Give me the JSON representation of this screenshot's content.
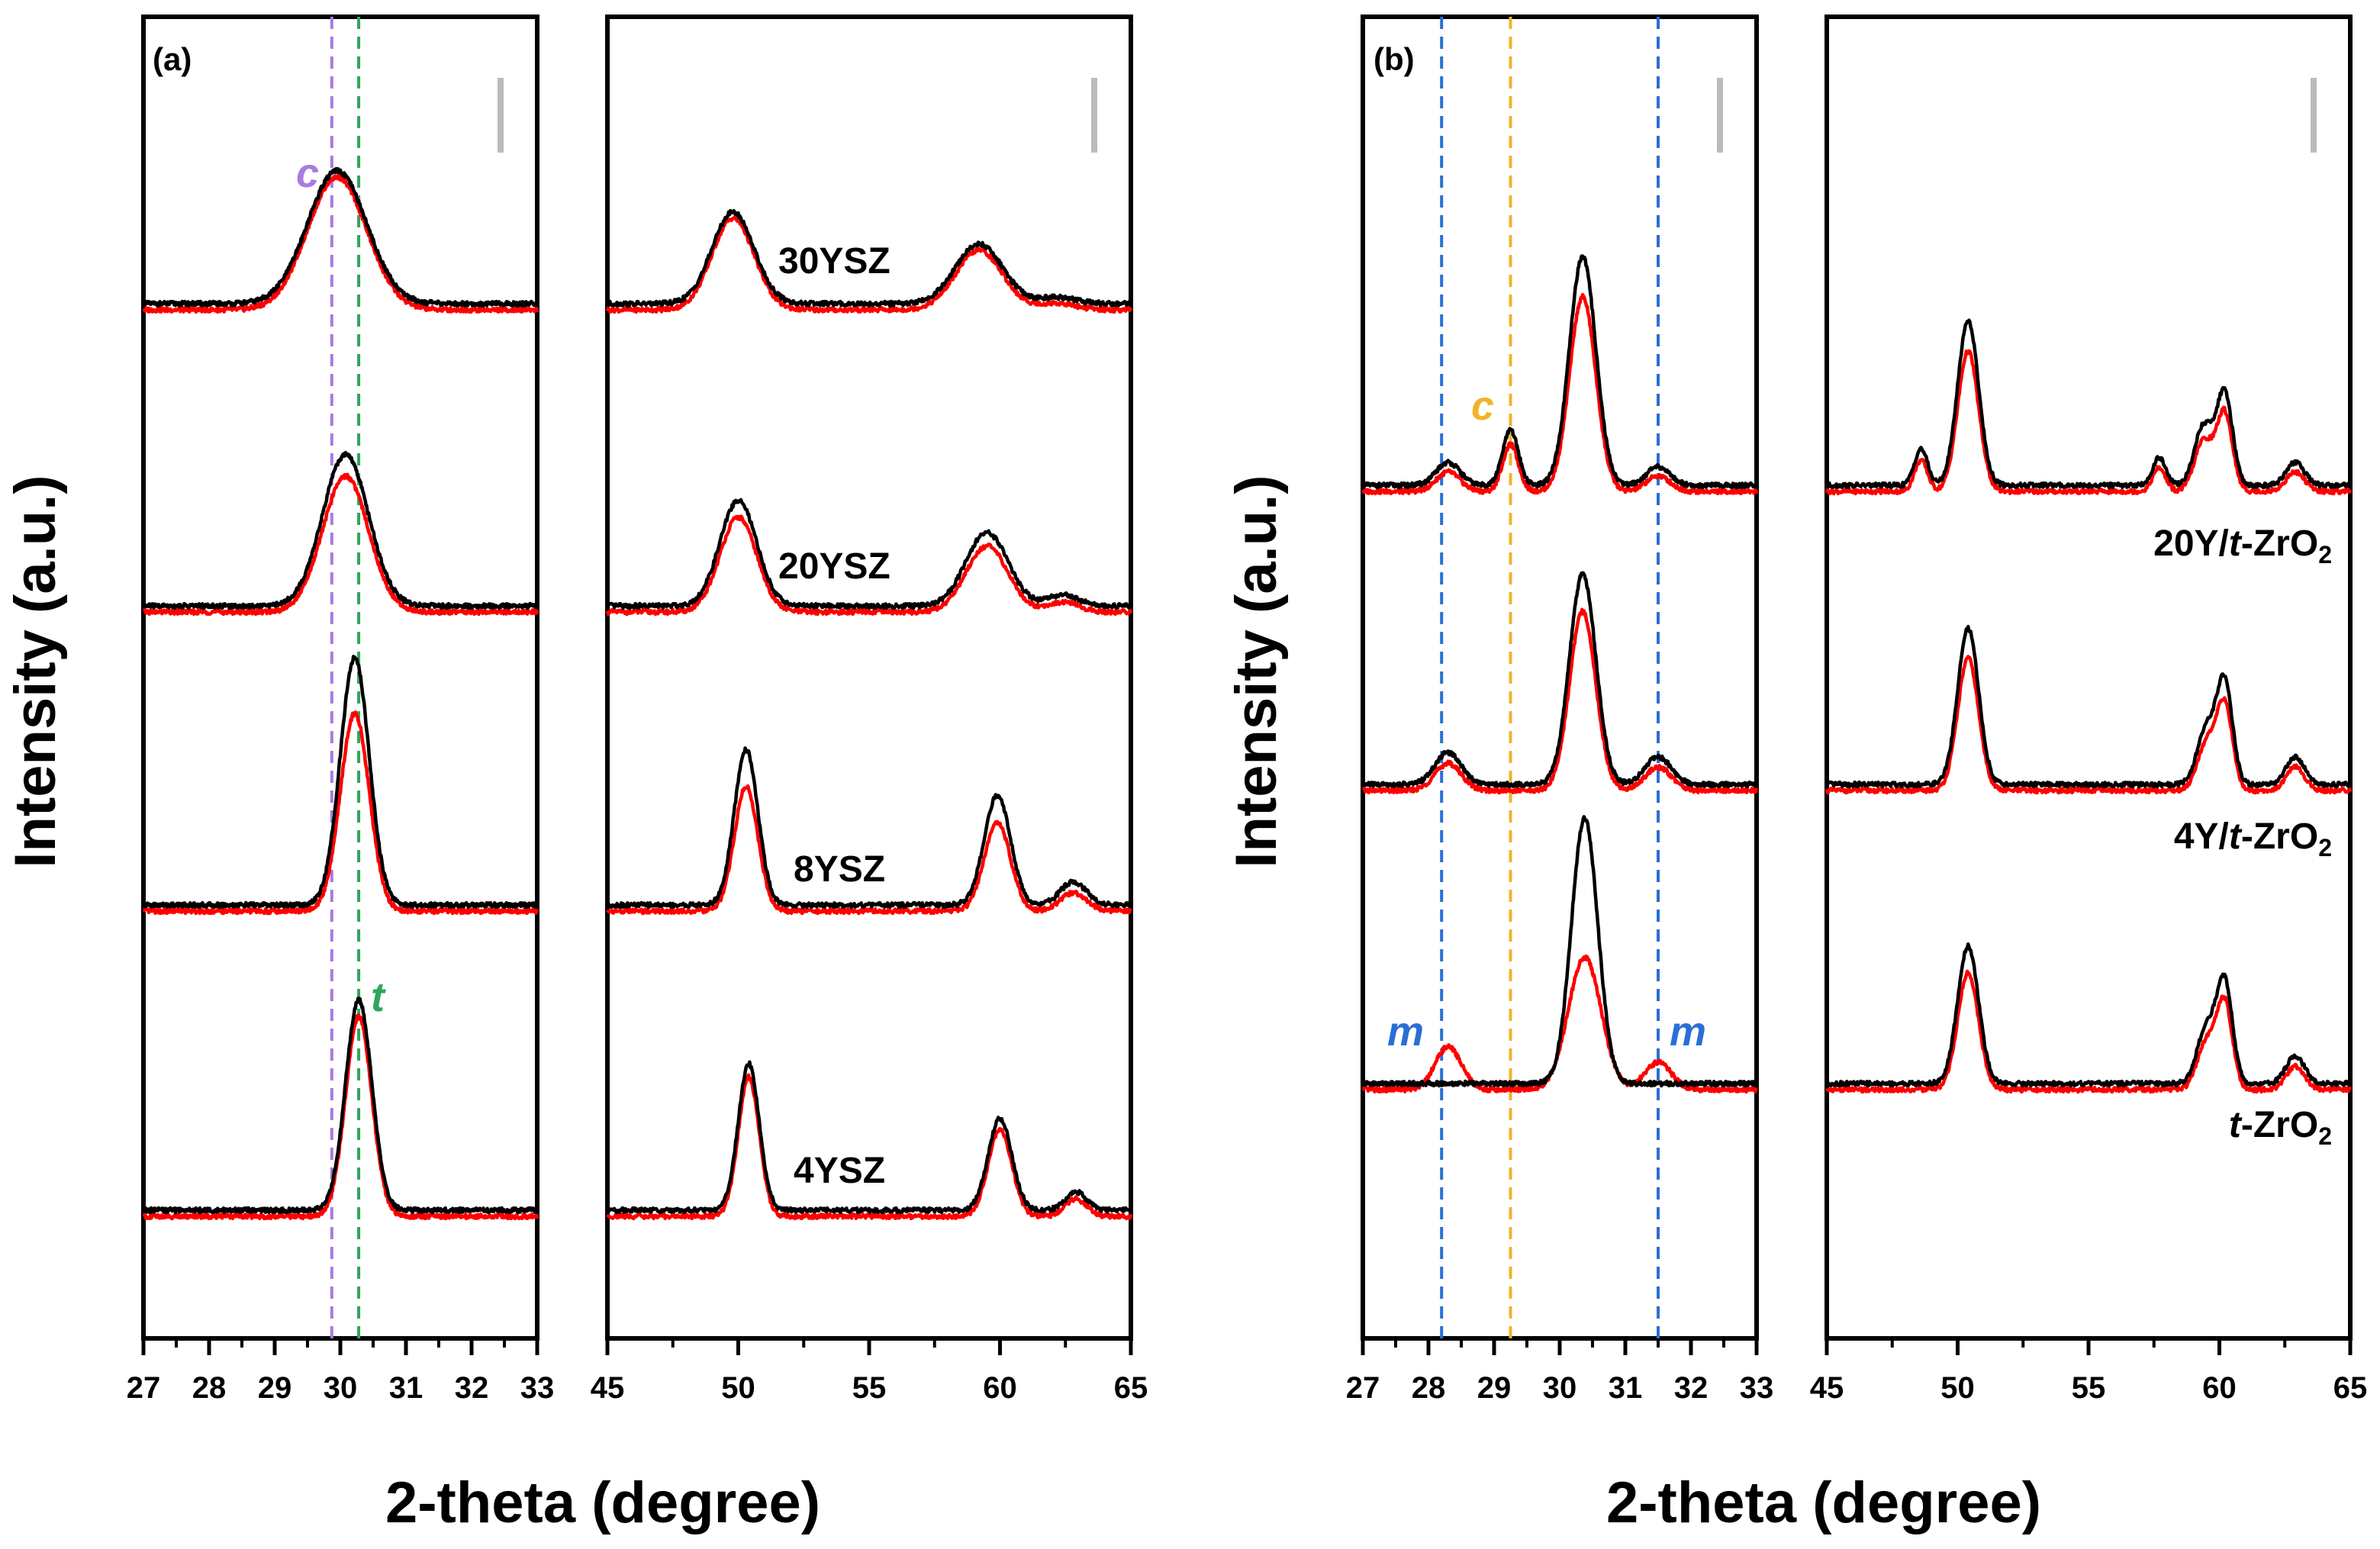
{
  "figure": {
    "ylabel": "Intensity (a.u.)",
    "xlabel": "2-theta (degree)"
  },
  "series_legend": {
    "black": "#000000",
    "red": "#ff0000"
  },
  "chart_data": [
    {
      "type": "line",
      "panel": "(a)",
      "xlabel": "2-theta (degree)",
      "ylabel": "Intensity (a.u.)",
      "subplots": [
        {
          "xlim": [
            27,
            33
          ],
          "xticks": [
            "27",
            "28",
            "29",
            "30",
            "31",
            "32",
            "33"
          ],
          "reference_lines": [
            {
              "x": 29.87,
              "phase": "c",
              "color": "#a87be0"
            },
            {
              "x": 30.28,
              "phase": "t",
              "color": "#2ea65a"
            }
          ],
          "scale_bar": true
        },
        {
          "xlim": [
            45,
            65
          ],
          "xticks": [
            "45",
            "50",
            "55",
            "60",
            "65"
          ],
          "scale_bar": true
        }
      ],
      "samples": [
        {
          "name": "30YSZ",
          "offset": 3,
          "peaks_low": [
            {
              "x": 29.95,
              "h": 1.45,
              "w": 0.45
            }
          ],
          "peaks_high": [
            {
              "x": 49.8,
              "h": 1.0,
              "w": 0.8
            },
            {
              "x": 59.2,
              "h": 0.65,
              "w": 0.9
            },
            {
              "x": 62.2,
              "h": 0.07,
              "w": 0.7
            }
          ],
          "red_scale": 1.0
        },
        {
          "name": "20YSZ",
          "offset": 2,
          "peaks_low": [
            {
              "x": 30.08,
              "h": 1.65,
              "w": 0.35
            }
          ],
          "peaks_high": [
            {
              "x": 50.0,
              "h": 1.15,
              "w": 0.7
            },
            {
              "x": 59.5,
              "h": 0.8,
              "w": 0.8
            },
            {
              "x": 62.4,
              "h": 0.12,
              "w": 0.6
            }
          ],
          "red_scale": 0.9
        },
        {
          "name": "8YSZ",
          "offset": 1,
          "peaks_low": [
            {
              "x": 30.22,
              "h": 2.7,
              "w": 0.22
            }
          ],
          "peaks_high": [
            {
              "x": 50.3,
              "h": 1.7,
              "w": 0.45
            },
            {
              "x": 59.9,
              "h": 1.2,
              "w": 0.5
            },
            {
              "x": 62.8,
              "h": 0.25,
              "w": 0.5
            }
          ],
          "red_scale": 0.8
        },
        {
          "name": "4YSZ",
          "offset": 0,
          "peaks_low": [
            {
              "x": 30.28,
              "h": 2.3,
              "w": 0.2
            }
          ],
          "peaks_high": [
            {
              "x": 50.4,
              "h": 1.6,
              "w": 0.4
            },
            {
              "x": 60.0,
              "h": 1.0,
              "w": 0.45
            },
            {
              "x": 62.9,
              "h": 0.2,
              "w": 0.4
            }
          ],
          "red_scale": 0.95
        }
      ]
    },
    {
      "type": "line",
      "panel": "(b)",
      "xlabel": "2-theta (degree)",
      "ylabel": "Intensity (a.u.)",
      "subplots": [
        {
          "xlim": [
            27,
            33
          ],
          "xticks": [
            "27",
            "28",
            "29",
            "30",
            "31",
            "32",
            "33"
          ],
          "reference_lines": [
            {
              "x": 28.2,
              "phase": "m",
              "color": "#2a6fd6"
            },
            {
              "x": 29.25,
              "phase": "c",
              "color": "#f0b429"
            },
            {
              "x": 31.5,
              "phase": "m",
              "color": "#2a6fd6"
            }
          ],
          "scale_bar": true
        },
        {
          "xlim": [
            45,
            65
          ],
          "xticks": [
            "45",
            "50",
            "55",
            "60",
            "65"
          ],
          "scale_bar": true
        }
      ],
      "samples": [
        {
          "name_prefix": "20Y/",
          "name_italic": "t",
          "name_suffix": "-ZrO",
          "name_sub": "2",
          "offset": 2,
          "peaks_low": [
            {
              "x": 28.3,
              "h": 0.25,
              "w": 0.18
            },
            {
              "x": 29.25,
              "h": 0.6,
              "w": 0.12
            },
            {
              "x": 30.35,
              "h": 2.5,
              "w": 0.2
            },
            {
              "x": 31.5,
              "h": 0.2,
              "w": 0.18
            }
          ],
          "peaks_high": [
            {
              "x": 48.6,
              "h": 0.4,
              "w": 0.25
            },
            {
              "x": 50.4,
              "h": 1.8,
              "w": 0.4
            },
            {
              "x": 57.7,
              "h": 0.3,
              "w": 0.25
            },
            {
              "x": 59.4,
              "h": 0.65,
              "w": 0.35
            },
            {
              "x": 60.2,
              "h": 1.0,
              "w": 0.3
            },
            {
              "x": 62.9,
              "h": 0.25,
              "w": 0.35
            }
          ],
          "red_scale": 0.85
        },
        {
          "name_prefix": "4Y/",
          "name_italic": "t",
          "name_suffix": "-ZrO",
          "name_sub": "2",
          "offset": 1,
          "peaks_low": [
            {
              "x": 28.3,
              "h": 0.35,
              "w": 0.2
            },
            {
              "x": 30.35,
              "h": 2.3,
              "w": 0.2
            },
            {
              "x": 31.5,
              "h": 0.3,
              "w": 0.2
            }
          ],
          "peaks_high": [
            {
              "x": 50.4,
              "h": 1.7,
              "w": 0.4
            },
            {
              "x": 59.5,
              "h": 0.6,
              "w": 0.35
            },
            {
              "x": 60.2,
              "h": 1.1,
              "w": 0.3
            },
            {
              "x": 62.9,
              "h": 0.3,
              "w": 0.35
            }
          ],
          "red_scale": 0.85
        },
        {
          "name_prefix": "",
          "name_italic": "t",
          "name_suffix": "-ZrO",
          "name_sub": "2",
          "offset": 0,
          "peaks_low": [
            {
              "x": 30.38,
              "h": 2.9,
              "w": 0.2
            }
          ],
          "peaks_low_red": [
            {
              "x": 28.3,
              "h": 0.55,
              "w": 0.2
            },
            {
              "x": 30.38,
              "h": 1.7,
              "w": 0.25
            },
            {
              "x": 31.5,
              "h": 0.35,
              "w": 0.2
            }
          ],
          "peaks_high": [
            {
              "x": 50.4,
              "h": 1.5,
              "w": 0.4
            },
            {
              "x": 59.5,
              "h": 0.6,
              "w": 0.35
            },
            {
              "x": 60.2,
              "h": 1.1,
              "w": 0.3
            },
            {
              "x": 62.9,
              "h": 0.3,
              "w": 0.35
            }
          ],
          "red_scale": 0.85
        }
      ]
    }
  ],
  "panel_a": {
    "letter": "(a)",
    "labels": [
      "30YSZ",
      "20YSZ",
      "8YSZ",
      "4YSZ"
    ],
    "phase_c": "c",
    "phase_t": "t"
  },
  "panel_b": {
    "letter": "(b)",
    "label_20y_prefix": "20Y/",
    "label_4y_prefix": "4Y/",
    "label_italic": "t",
    "label_suffix": "-ZrO",
    "label_sub": "2",
    "phase_c": "c",
    "phase_m": "m"
  }
}
